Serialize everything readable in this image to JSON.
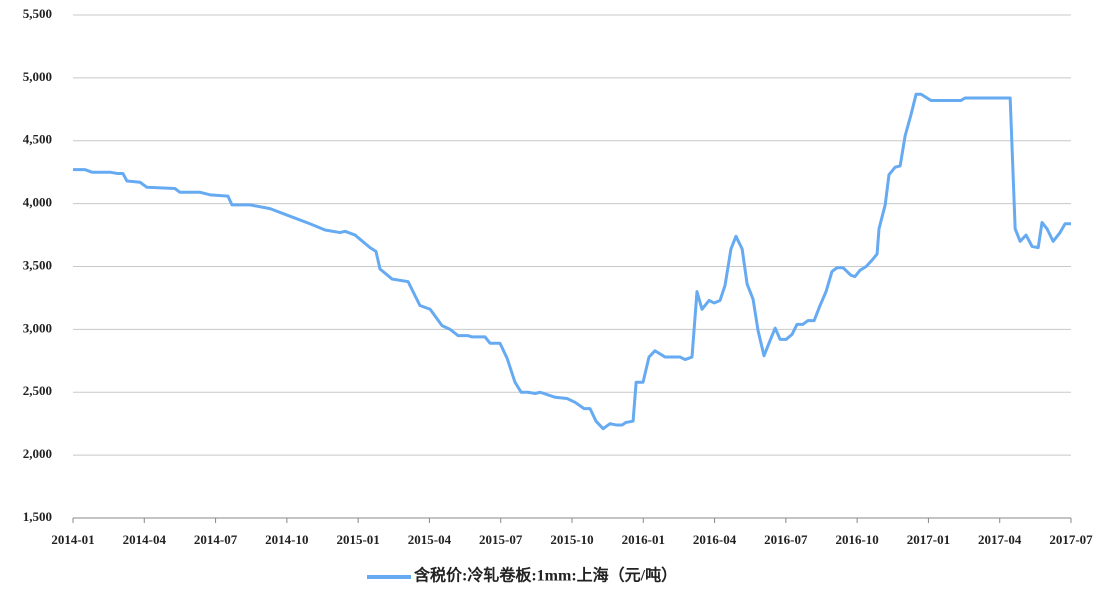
{
  "chart_data": {
    "type": "line",
    "x": [
      0,
      0.51,
      0.8,
      1.56,
      1.85,
      2.1,
      2.27,
      2.82,
      3.11,
      4.29,
      4.5,
      5.35,
      5.77,
      6.52,
      6.69,
      7.45,
      8.29,
      9.13,
      9.97,
      10.61,
      11.24,
      11.45,
      11.87,
      12.5,
      12.75,
      12.92,
      13.43,
      14.1,
      14.6,
      15.03,
      15.53,
      15.87,
      16.21,
      16.63,
      16.79,
      17.34,
      17.55,
      17.97,
      18.27,
      18.6,
      18.86,
      19.15,
      19.45,
      19.66,
      20.29,
      20.79,
      21.13,
      21.51,
      21.76,
      22.01,
      22.31,
      22.6,
      22.85,
      23.11,
      23.27,
      23.57,
      23.7,
      23.99,
      24.24,
      24.49,
      24.92,
      25.55,
      25.76,
      26.05,
      26.26,
      26.47,
      26.77,
      26.98,
      27.23,
      27.44,
      27.69,
      27.9,
      28.16,
      28.37,
      28.62,
      28.83,
      29.08,
      29.29,
      29.55,
      29.76,
      30.01,
      30.26,
      30.47,
      30.72,
      30.93,
      31.19,
      31.44,
      31.69,
      31.94,
      32.15,
      32.41,
      32.74,
      32.91,
      33.12,
      33.38,
      33.67,
      33.84,
      33.92,
      34.18,
      34.34,
      34.6,
      34.81,
      35.02,
      35.27,
      35.48,
      35.69,
      36.11,
      37.37,
      37.54,
      39.44,
      39.65,
      39.86,
      40.11,
      40.36,
      40.62,
      40.78,
      40.99,
      41.25,
      41.54,
      41.75,
      42
    ],
    "series": [
      {
        "name": "含税价:冷轧卷板:1mm:上海（元/吨）",
        "color": "#66aaf2",
        "values": [
          4270,
          4270,
          4250,
          4250,
          4240,
          4240,
          4180,
          4170,
          4130,
          4120,
          4090,
          4090,
          4070,
          4060,
          3990,
          3990,
          3960,
          3900,
          3840,
          3790,
          3770,
          3780,
          3750,
          3650,
          3620,
          3480,
          3400,
          3380,
          3190,
          3160,
          3030,
          3000,
          2950,
          2950,
          2940,
          2940,
          2890,
          2890,
          2770,
          2580,
          2500,
          2500,
          2490,
          2500,
          2460,
          2450,
          2420,
          2370,
          2370,
          2270,
          2210,
          2250,
          2240,
          2240,
          2260,
          2270,
          2580,
          2580,
          2780,
          2830,
          2780,
          2780,
          2760,
          2780,
          3300,
          3160,
          3230,
          3210,
          3230,
          3350,
          3640,
          3740,
          3640,
          3360,
          3240,
          2990,
          2790,
          2890,
          3010,
          2920,
          2920,
          2960,
          3040,
          3040,
          3070,
          3070,
          3190,
          3300,
          3460,
          3490,
          3490,
          3430,
          3420,
          3470,
          3500,
          3560,
          3600,
          3800,
          3990,
          4230,
          4290,
          4300,
          4540,
          4710,
          4870,
          4870,
          4820,
          4820,
          4840,
          4840,
          3800,
          3700,
          3750,
          3660,
          3650,
          3850,
          3800,
          3700,
          3770,
          3840,
          3840
        ]
      }
    ],
    "xlim": [
      0,
      42
    ],
    "xticks": [
      {
        "value": 0,
        "label": "2014-01"
      },
      {
        "value": 3,
        "label": "2014-04"
      },
      {
        "value": 6,
        "label": "2014-07"
      },
      {
        "value": 9,
        "label": "2014-10"
      },
      {
        "value": 12,
        "label": "2015-01"
      },
      {
        "value": 15,
        "label": "2015-04"
      },
      {
        "value": 18,
        "label": "2015-07"
      },
      {
        "value": 21,
        "label": "2015-10"
      },
      {
        "value": 24,
        "label": "2016-01"
      },
      {
        "value": 27,
        "label": "2016-04"
      },
      {
        "value": 30,
        "label": "2016-07"
      },
      {
        "value": 33,
        "label": "2016-10"
      },
      {
        "value": 36,
        "label": "2017-01"
      },
      {
        "value": 39,
        "label": "2017-04"
      },
      {
        "value": 42,
        "label": "2017-07"
      }
    ],
    "ylim": [
      1500,
      5500
    ],
    "yticks": [
      {
        "value": 1500,
        "label": "1,500"
      },
      {
        "value": 2000,
        "label": "2,000"
      },
      {
        "value": 2500,
        "label": "2,500"
      },
      {
        "value": 3000,
        "label": "3,000"
      },
      {
        "value": 3500,
        "label": "3,500"
      },
      {
        "value": 4000,
        "label": "4,000"
      },
      {
        "value": 4500,
        "label": "4,500"
      },
      {
        "value": 5000,
        "label": "5,000"
      },
      {
        "value": 5500,
        "label": "5,500"
      }
    ],
    "grid": true,
    "legend": "bottom"
  }
}
